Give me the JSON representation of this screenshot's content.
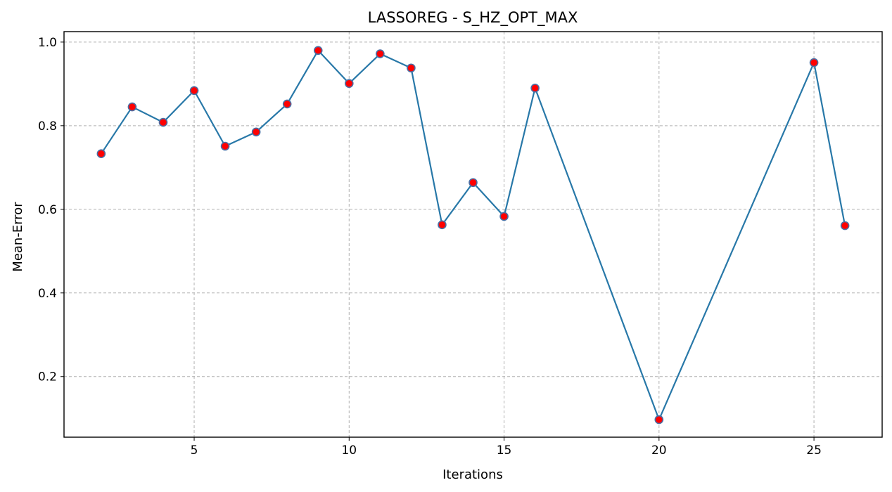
{
  "chart_data": {
    "type": "line",
    "title": "LASSOREG - S_HZ_OPT_MAX",
    "xlabel": "Iterations",
    "ylabel": "Mean-Error",
    "xlim": [
      0.8,
      27.2
    ],
    "ylim": [
      0.055,
      1.025
    ],
    "xticks": [
      5,
      10,
      15,
      20,
      25
    ],
    "yticks": [
      0.2,
      0.4,
      0.6,
      0.8,
      1.0
    ],
    "xtick_labels": [
      "5",
      "10",
      "15",
      "20",
      "25"
    ],
    "ytick_labels": [
      "0.2",
      "0.4",
      "0.6",
      "0.8",
      "1.0"
    ],
    "grid": true,
    "grid_style": "dashed",
    "line_color": "#2878a8",
    "marker_fill": "#ff0000",
    "marker_edge": "#4a6fa5",
    "series": [
      {
        "x": [
          2,
          3,
          4,
          5,
          6,
          7,
          8,
          9,
          10,
          11,
          12,
          13,
          14,
          15,
          16,
          20,
          25,
          26
        ],
        "y": [
          0.733,
          0.845,
          0.808,
          0.884,
          0.751,
          0.785,
          0.852,
          0.98,
          0.901,
          0.972,
          0.938,
          0.563,
          0.664,
          0.583,
          0.89,
          0.097,
          0.951,
          0.561
        ]
      }
    ]
  }
}
